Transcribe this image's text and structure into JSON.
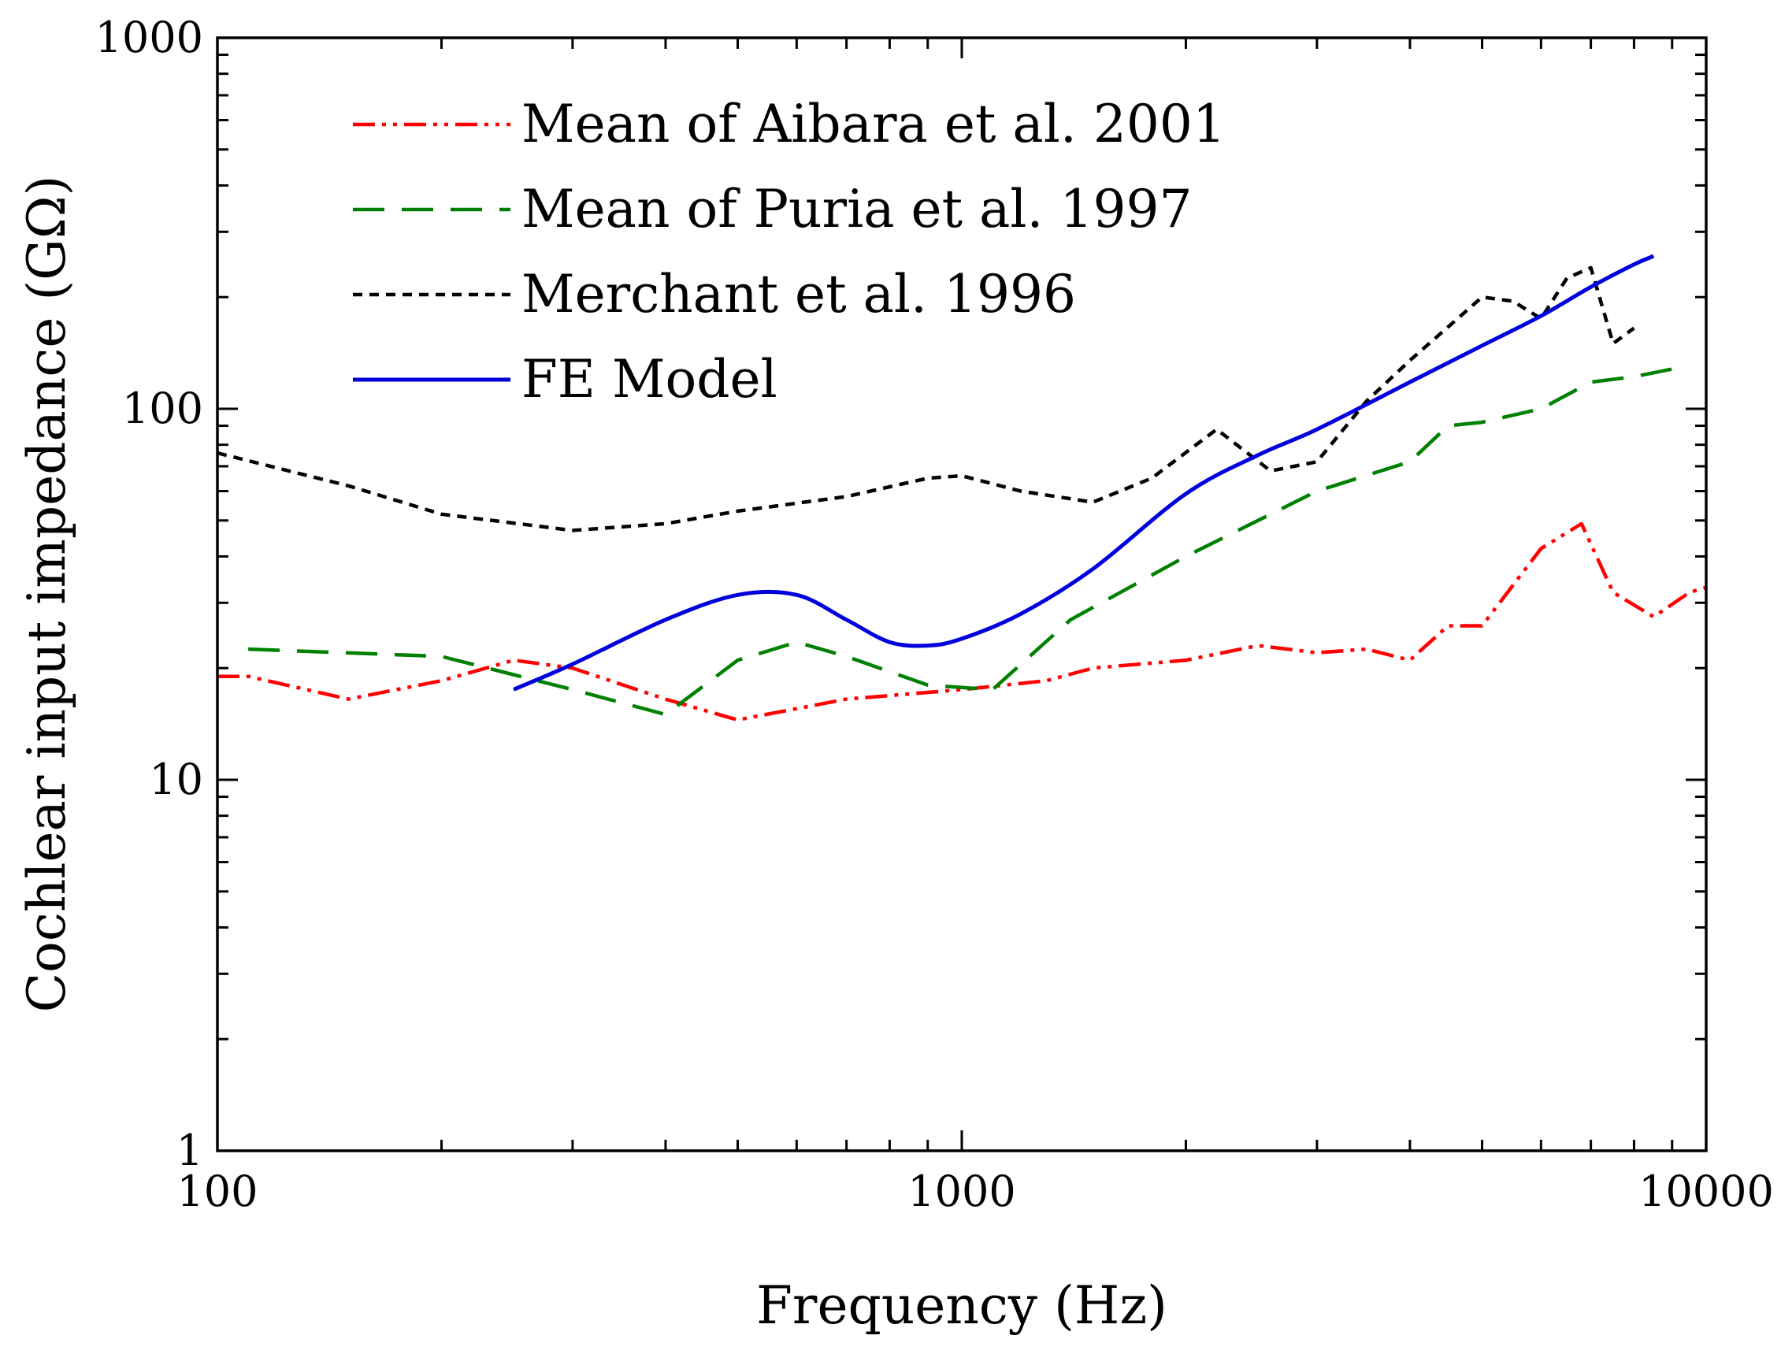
{
  "chart_data": {
    "type": "line",
    "title": "",
    "xlabel": "Frequency (Hz)",
    "ylabel": "Cochlear input impedance (GΩ)",
    "xscale": "log",
    "yscale": "log",
    "xlim": [
      100,
      10000
    ],
    "ylim": [
      1,
      1000
    ],
    "xticks": [
      {
        "value": 100,
        "label": "100"
      },
      {
        "value": 1000,
        "label": "1000"
      },
      {
        "value": 10000,
        "label": "10000"
      }
    ],
    "yticks": [
      {
        "value": 1,
        "label": "1"
      },
      {
        "value": 10,
        "label": "10"
      },
      {
        "value": 100,
        "label": "100"
      },
      {
        "value": 1000,
        "label": "1000"
      }
    ],
    "legend_position": "top-left",
    "series": [
      {
        "name": "Mean of Aibara et al. 2001",
        "color": "#ff0000",
        "style": "dash-dot-dot",
        "x": [
          100,
          110,
          150,
          200,
          250,
          300,
          400,
          500,
          700,
          1000,
          1300,
          1500,
          2000,
          2500,
          3000,
          3500,
          4000,
          4500,
          5000,
          6000,
          6800,
          7500,
          8500,
          9500,
          10000
        ],
        "y": [
          19,
          19,
          16.5,
          18.5,
          21,
          20,
          16.5,
          14.5,
          16.5,
          17.5,
          18.5,
          20,
          21,
          23,
          22,
          22.5,
          21,
          26,
          26,
          42,
          49,
          32,
          27.5,
          32,
          33
        ]
      },
      {
        "name": "Mean of Puria et al. 1997",
        "color": "#008000",
        "style": "dashed",
        "x": [
          110,
          200,
          300,
          400,
          500,
          600,
          700,
          900,
          1100,
          1400,
          2000,
          3000,
          4000,
          4500,
          5000,
          6000,
          7000,
          8000,
          9000
        ],
        "y": [
          22.5,
          21.5,
          17.5,
          15,
          21,
          23.5,
          21.5,
          18,
          17.5,
          27,
          40,
          60,
          72,
          90,
          92,
          100,
          118,
          122,
          128
        ]
      },
      {
        "name": "Merchant et al. 1996",
        "color": "#000000",
        "style": "dotted",
        "x": [
          100,
          150,
          200,
          300,
          400,
          500,
          700,
          900,
          1000,
          1200,
          1500,
          1800,
          2200,
          2600,
          3000,
          3500,
          4000,
          5000,
          5500,
          6000,
          6500,
          7000,
          7500,
          8000
        ],
        "y": [
          76,
          62,
          52,
          47,
          49,
          53,
          58,
          65,
          66,
          60,
          56,
          65,
          88,
          68,
          72,
          105,
          135,
          200,
          195,
          175,
          225,
          240,
          150,
          165
        ]
      },
      {
        "name": "FE Model",
        "color": "#0000dd",
        "style": "solid",
        "x": [
          250,
          300,
          400,
          500,
          600,
          700,
          800,
          900,
          1000,
          1200,
          1500,
          2000,
          2500,
          3000,
          4000,
          5000,
          6000,
          7000,
          8000,
          8500
        ],
        "y": [
          17.5,
          20.5,
          27,
          31.5,
          31.5,
          27,
          23.5,
          23,
          24,
          28,
          37,
          59,
          75,
          88,
          118,
          148,
          178,
          213,
          245,
          258
        ]
      }
    ]
  }
}
